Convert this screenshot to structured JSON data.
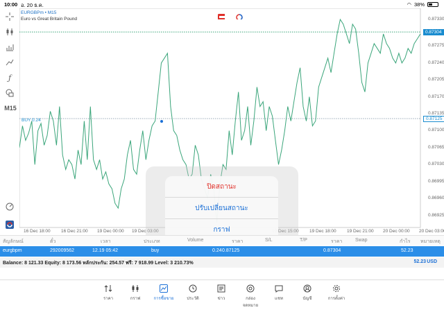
{
  "status": {
    "time": "10:00",
    "date": "อ. 20 ธ.ค.",
    "battery": "38%",
    "battery_level": 0.38
  },
  "toolbar": {
    "timeframe": "M15"
  },
  "chart_header": {
    "symbol_line": "EURGBPm • M15",
    "description": "Euro vs Great Britain Pound"
  },
  "chart_data": {
    "type": "line",
    "series": [
      {
        "values": [
          0.87065,
          0.8711,
          0.8708,
          0.87095,
          0.8712,
          0.8703,
          0.871,
          0.87115,
          0.8707,
          0.8709,
          0.8714,
          0.8712,
          0.8707,
          0.8715,
          0.8705,
          0.8702,
          0.8704,
          0.8703,
          0.87,
          0.8706,
          0.8703,
          0.8712,
          0.8704,
          0.8715,
          0.8704,
          0.8702,
          0.8704,
          0.87,
          0.87015,
          0.8699,
          0.8698,
          0.8695,
          0.8694,
          0.8698,
          0.87,
          0.8705,
          0.8708,
          0.8702,
          0.8701,
          0.8706,
          0.871,
          0.8704,
          0.8708,
          0.8711,
          0.8712,
          0.8718,
          0.8724,
          0.8725,
          0.8726,
          0.8715,
          0.871,
          0.8709,
          0.8706,
          0.8704,
          0.8703,
          0.87,
          0.8701,
          0.8707,
          0.8705,
          0.87,
          0.8698,
          0.8696,
          0.8701,
          0.8698,
          0.8691,
          0.8699,
          0.8703,
          0.8702,
          0.871,
          0.8705,
          0.8712,
          0.8718,
          0.8708,
          0.871,
          0.8715,
          0.8707,
          0.8712,
          0.8719,
          0.8715,
          0.8716,
          0.871,
          0.8715,
          0.8713,
          0.8708,
          0.8703,
          0.8706,
          0.871,
          0.8715,
          0.8712,
          0.8716,
          0.872,
          0.8723,
          0.8715,
          0.8712,
          0.8717,
          0.8711,
          0.8712,
          0.8719,
          0.8721,
          0.8723,
          0.8725,
          0.8722,
          0.8726,
          0.873,
          0.8733,
          0.8732,
          0.873,
          0.8728,
          0.8732,
          0.8731,
          0.8726,
          0.872,
          0.8718,
          0.8724,
          0.8726,
          0.8728,
          0.8727,
          0.8726,
          0.873,
          0.8728,
          0.8727,
          0.8725,
          0.8724,
          0.8726,
          0.8724,
          0.8725,
          0.8727,
          0.8726,
          0.8728,
          0.8729,
          0.873
        ]
      }
    ],
    "y_ticks": [
      "0.87330",
      "0.87275",
      "0.87240",
      "0.87205",
      "0.87170",
      "0.87135",
      "0.87100",
      "0.87065",
      "0.87030",
      "0.86995",
      "0.86960",
      "0.86925"
    ],
    "ylim": [
      0.869,
      0.8735
    ],
    "x_ticks": [
      "16 Dec 18:00",
      "16 Dec 21:00",
      "19 Dec 00:00",
      "19 Dec 03:00",
      "19 Dec 15:00",
      "19 Dec 18:00",
      "19 Dec 21:00",
      "20 Dec 00:00",
      "20 Dec 03:00"
    ],
    "current_price": "0.87304",
    "buy_level": "0.87125",
    "buy_label": "BUY 0.24",
    "line_color": "#3aa57a"
  },
  "popup": {
    "items": [
      "ปิดสถานะ",
      "ปรับเปลี่ยนสถานะ",
      "กราฟ"
    ]
  },
  "table": {
    "headers": [
      "สัญลักษณ์",
      "ตั๋ว",
      "เวลา",
      "ประเภท",
      "Volume",
      "ราคา",
      "S/L",
      "T/P",
      "ราคา",
      "Swap",
      "กำไร",
      "หมายเหตุ"
    ],
    "row": [
      "eurgbpm",
      "292009562",
      "12.19 05:42",
      "buy",
      "0.24",
      "0.87125",
      "0.87304",
      "52.23"
    ]
  },
  "balance": {
    "text": "Balance: 8 121.33  Equity: 8 173.56  หลักประกัน: 254.57  ฟรี: 7 918.99  Level: 3 210.73%",
    "amount": "52.23",
    "currency": "USD"
  },
  "tabs": [
    {
      "label": "ราคา",
      "icon": "arrows-updown-icon"
    },
    {
      "label": "กราฟ",
      "icon": "candles-icon"
    },
    {
      "label": "การซื้อขาย",
      "icon": "chart-line-icon",
      "active": true
    },
    {
      "label": "ประวัติ",
      "icon": "history-icon"
    },
    {
      "label": "ข่าว",
      "icon": "news-icon"
    },
    {
      "label": "กล่องจดหมาย",
      "icon": "mail-at-icon"
    },
    {
      "label": "แชท",
      "icon": "chat-icon"
    },
    {
      "label": "บัญชี",
      "icon": "account-icon"
    },
    {
      "label": "การตั้งค่า",
      "icon": "gear-icon"
    }
  ],
  "colors": {
    "accent": "#1a6fd6",
    "row_bg": "#2b8ee8",
    "danger": "#e0302a"
  }
}
